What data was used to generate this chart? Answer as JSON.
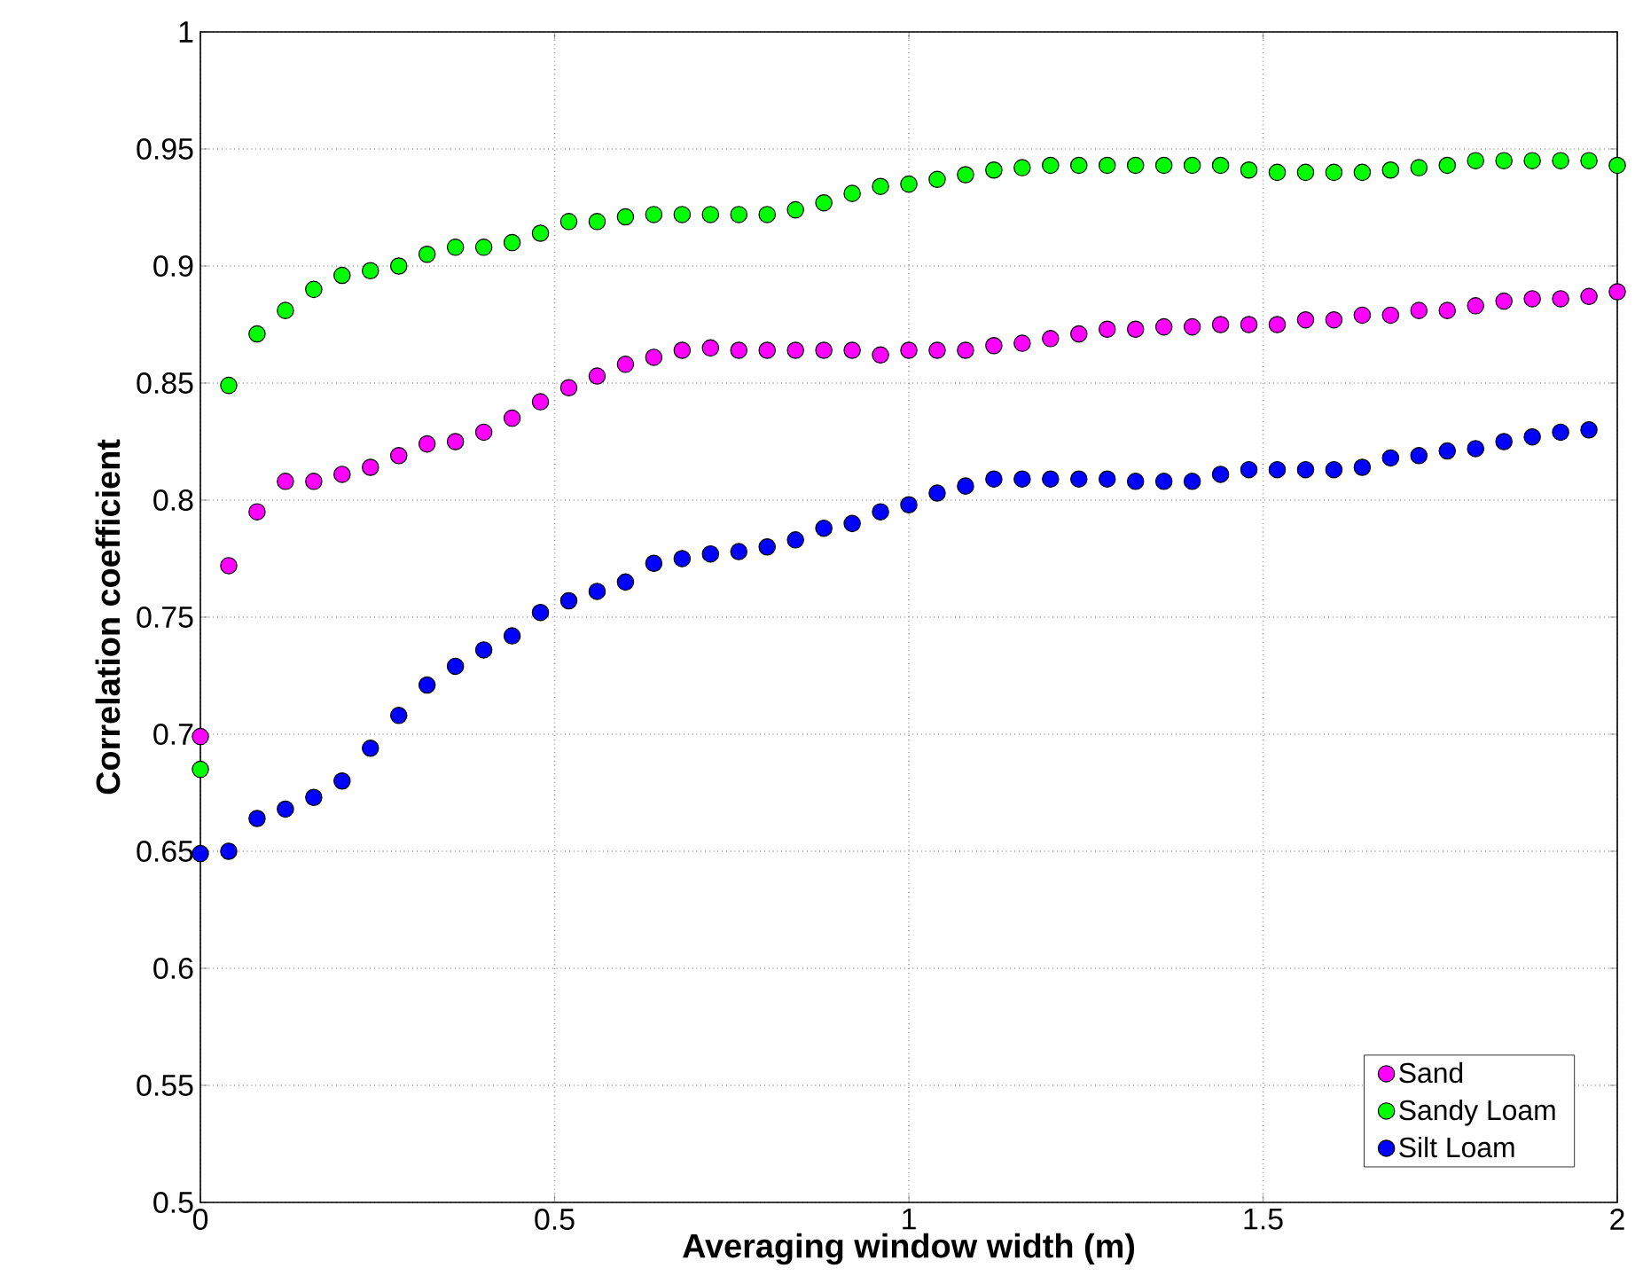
{
  "chart_data": {
    "type": "scatter",
    "xlabel": "Averaging window width (m)",
    "ylabel": "Correlation coefficient",
    "x": [
      0,
      0.04,
      0.08,
      0.12,
      0.16,
      0.2,
      0.24,
      0.28,
      0.32,
      0.36,
      0.4,
      0.44,
      0.48,
      0.52,
      0.56,
      0.6,
      0.64,
      0.68,
      0.72,
      0.76,
      0.8,
      0.84,
      0.88,
      0.92,
      0.96,
      1,
      1.04,
      1.08,
      1.12,
      1.16,
      1.2,
      1.24,
      1.28,
      1.32,
      1.36,
      1.4,
      1.44,
      1.48,
      1.52,
      1.56,
      1.6,
      1.64,
      1.68,
      1.72,
      1.76,
      1.8,
      1.84,
      1.88,
      1.92,
      1.96,
      2
    ],
    "series": [
      {
        "name": "Sand",
        "color": "#ff00ff",
        "values": [
          0.699,
          0.772,
          0.795,
          0.808,
          0.808,
          0.811,
          0.814,
          0.819,
          0.824,
          0.825,
          0.829,
          0.835,
          0.842,
          0.848,
          0.853,
          0.858,
          0.861,
          0.864,
          0.865,
          0.864,
          0.864,
          0.864,
          0.864,
          0.864,
          0.862,
          0.864,
          0.864,
          0.864,
          0.866,
          0.867,
          0.869,
          0.871,
          0.873,
          0.873,
          0.874,
          0.874,
          0.875,
          0.875,
          0.875,
          0.877,
          0.877,
          0.879,
          0.879,
          0.881,
          0.881,
          0.883,
          0.885,
          0.886,
          0.886,
          0.887,
          0.889
        ]
      },
      {
        "name": "Sandy Loam",
        "color": "#00ff00",
        "values": [
          0.685,
          0.849,
          0.871,
          0.881,
          0.89,
          0.896,
          0.898,
          0.9,
          0.905,
          0.908,
          0.908,
          0.91,
          0.914,
          0.919,
          0.919,
          0.921,
          0.922,
          0.922,
          0.922,
          0.922,
          0.922,
          0.924,
          0.927,
          0.931,
          0.934,
          0.935,
          0.937,
          0.939,
          0.941,
          0.942,
          0.943,
          0.943,
          0.943,
          0.943,
          0.943,
          0.943,
          0.943,
          0.941,
          0.94,
          0.94,
          0.94,
          0.94,
          0.941,
          0.942,
          0.943,
          0.945,
          0.945,
          0.945,
          0.945,
          0.945,
          0.943
        ]
      },
      {
        "name": "Silt Loam",
        "color": "#0000ff",
        "values": [
          0.649,
          0.65,
          0.664,
          0.668,
          0.673,
          0.68,
          0.694,
          0.708,
          0.721,
          0.729,
          0.736,
          0.742,
          0.752,
          0.757,
          0.761,
          0.765,
          0.773,
          0.775,
          0.777,
          0.778,
          0.78,
          0.783,
          0.788,
          0.79,
          0.795,
          0.798,
          0.803,
          0.806,
          0.809,
          0.809,
          0.809,
          0.809,
          0.809,
          0.808,
          0.808,
          0.808,
          0.811,
          0.813,
          0.813,
          0.813,
          0.813,
          0.814,
          0.818,
          0.819,
          0.821,
          0.822,
          0.825,
          0.827,
          0.829,
          0.83,
          null
        ]
      }
    ],
    "xlim": [
      0,
      2
    ],
    "ylim": [
      0.5,
      1
    ],
    "xticks": [
      0,
      0.5,
      1,
      1.5,
      2
    ],
    "yticks": [
      0.5,
      0.55,
      0.6,
      0.65,
      0.7,
      0.75,
      0.8,
      0.85,
      0.9,
      0.95,
      1
    ],
    "grid": true,
    "legend": "bottom right"
  }
}
